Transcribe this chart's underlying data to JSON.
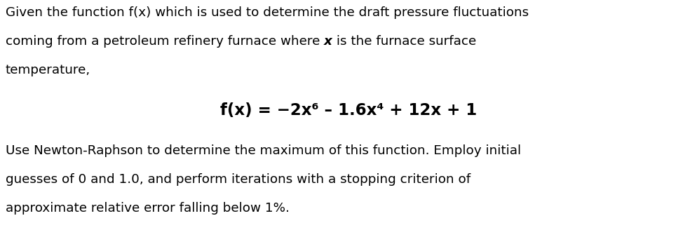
{
  "background_color": "#ffffff",
  "text_color": "#000000",
  "figsize": [
    9.95,
    3.48
  ],
  "dpi": 100,
  "line1": "Given the function f(x) which is used to determine the draft pressure fluctuations",
  "line2a": "coming from a petroleum refinery furnace where ",
  "line2b": "x",
  "line2c": " is the furnace surface",
  "line3": "temperature,",
  "formula": "f(x) = −2x⁶ – 1.6x⁴ + 12x + 1",
  "line4": "Use Newton-Raphson to determine the maximum of this function. Employ initial",
  "line5": "guesses of 0 and 1.0, and perform iterations with a stopping criterion of",
  "line6": "approximate relative error falling below 1%.",
  "font_size": 13.2,
  "font_size_formula": 16.5,
  "font_family": "DejaVu Sans"
}
